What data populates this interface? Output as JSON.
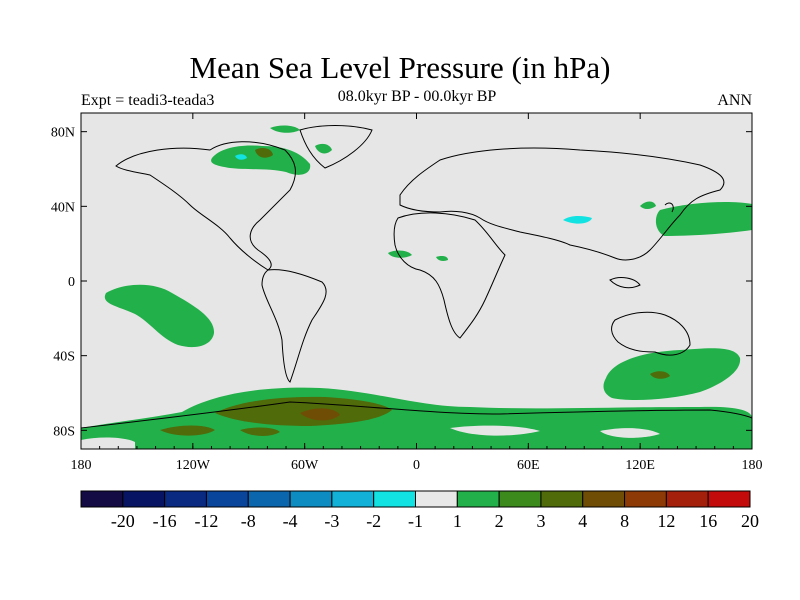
{
  "title": "Mean Sea Level Pressure (in hPa)",
  "subtitle": "08.0kyr BP - 00.0kyr BP",
  "left_label": "Expt = teadi3-teada3",
  "right_label": "ANN",
  "axes": {
    "x_ticks": [
      "180",
      "120W",
      "60W",
      "0",
      "60E",
      "120E",
      "180"
    ],
    "y_ticks": [
      "80N",
      "40N",
      "0",
      "40S",
      "80S"
    ]
  },
  "legend": {
    "colors": [
      "#140a44",
      "#061463",
      "#0a2a82",
      "#0a459c",
      "#0b66ad",
      "#0d8cc2",
      "#12b2d8",
      "#12e2e2",
      "#e8e8e8",
      "#22b04a",
      "#3d8a1c",
      "#4f6b0a",
      "#704d05",
      "#8e3a06",
      "#a5200b",
      "#c40b0b"
    ],
    "labels": [
      "-20",
      "-16",
      "-12",
      "-8",
      "-4",
      "-3",
      "-2",
      "-1",
      "1",
      "2",
      "3",
      "4",
      "8",
      "12",
      "16",
      "20"
    ]
  },
  "colors": {
    "background_field": "#e6e6e6",
    "positive_2": "#22b04a",
    "positive_4": "#4f6b0a",
    "negative_1": "#12e2e2"
  }
}
